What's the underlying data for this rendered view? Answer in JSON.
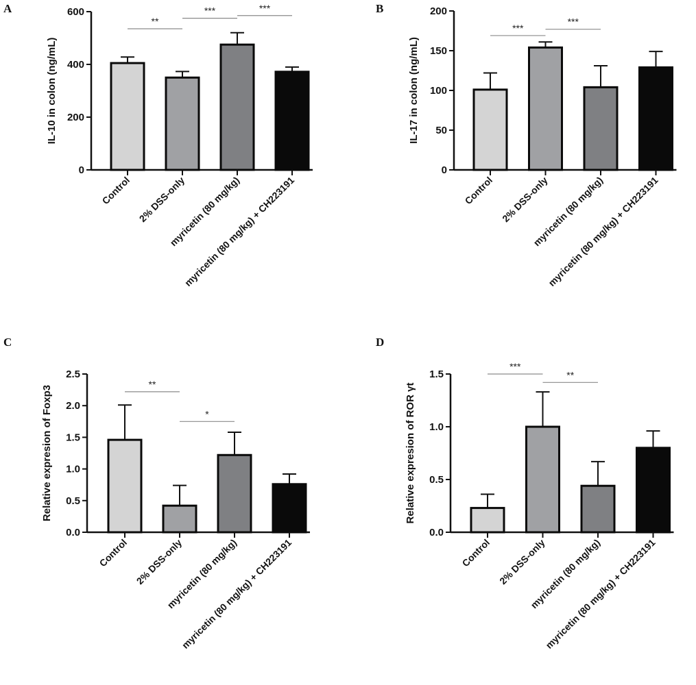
{
  "colors": {
    "Control": "#d4d4d4",
    "2% DSS-only": "#a0a1a4",
    "myricetin (80 mg/kg)": "#7f8083",
    "myricetin (80 mg/kg) + CH223191": "#0a0a0a",
    "significance_line": "#8a8a8a"
  },
  "chart_data": [
    {
      "panel": "A",
      "type": "bar",
      "ylabel": "IL-10 in colon (ng/mL)",
      "ylim": [
        0,
        600
      ],
      "yticks": [
        "0",
        "200",
        "400",
        "600"
      ],
      "categories": [
        "Control",
        "2% DSS-only",
        "myricetin (80 mg/kg)",
        "myricetin (80 mg/kg) + CH223191"
      ],
      "values": [
        405,
        350,
        475,
        372
      ],
      "error_upper": [
        428,
        373,
        520,
        390
      ],
      "significance": [
        {
          "from": 0,
          "to": 1,
          "label": "**",
          "level": 535
        },
        {
          "from": 1,
          "to": 2,
          "label": "***",
          "level": 575
        },
        {
          "from": 2,
          "to": 3,
          "label": "***",
          "level": 585
        }
      ]
    },
    {
      "panel": "B",
      "type": "bar",
      "ylabel": "IL-17 in colon (ng/mL)",
      "ylim": [
        0,
        200
      ],
      "yticks": [
        "0",
        "50",
        "100",
        "150",
        "200"
      ],
      "categories": [
        "Control",
        "2% DSS-only",
        "myricetin (80 mg/kg)",
        "myricetin (80 mg/kg) + CH223191"
      ],
      "values": [
        101,
        154,
        104,
        129
      ],
      "error_upper": [
        122,
        161,
        131,
        149
      ],
      "significance": [
        {
          "from": 0,
          "to": 1,
          "label": "***",
          "level": 169
        },
        {
          "from": 1,
          "to": 2,
          "label": "***",
          "level": 177
        }
      ]
    },
    {
      "panel": "C",
      "type": "bar",
      "ylabel": "Relative expresion of Foxp3",
      "ylim": [
        0,
        2.5
      ],
      "yticks": [
        "0.0",
        "0.5",
        "1.0",
        "1.5",
        "2.0",
        "2.5"
      ],
      "categories": [
        "Control",
        "2% DSS-only",
        "myricetin (80 mg/kg)",
        "myricetin (80 mg/kg) + CH223191"
      ],
      "values": [
        1.46,
        0.42,
        1.22,
        0.76
      ],
      "error_upper": [
        2.01,
        0.74,
        1.58,
        0.92
      ],
      "significance": [
        {
          "from": 0,
          "to": 1,
          "label": "**",
          "level": 2.22
        },
        {
          "from": 1,
          "to": 2,
          "label": "*",
          "level": 1.75
        }
      ]
    },
    {
      "panel": "D",
      "type": "bar",
      "ylabel": "Relative expresion of ROR γt",
      "ylim": [
        0,
        1.5
      ],
      "yticks": [
        "0.0",
        "0.5",
        "1.0",
        "1.5"
      ],
      "categories": [
        "Control",
        "2% DSS-only",
        "myricetin (80 mg/kg)",
        "myricetin (80 mg/kg) + CH223191"
      ],
      "values": [
        0.23,
        1.0,
        0.44,
        0.8
      ],
      "error_upper": [
        0.36,
        1.33,
        0.67,
        0.96
      ],
      "significance": [
        {
          "from": 0,
          "to": 1,
          "label": "***",
          "level": 1.5
        },
        {
          "from": 1,
          "to": 2,
          "label": "**",
          "level": 1.42
        }
      ]
    }
  ]
}
